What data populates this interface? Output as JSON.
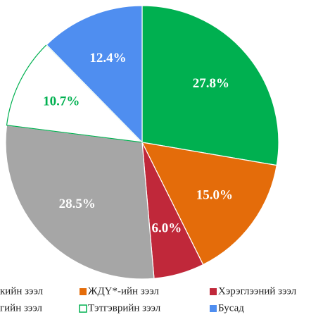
{
  "chart_data": {
    "type": "pie",
    "categories": [
      "кийн зээл",
      "ЖДҮ*-ийн зээл",
      "Хэрэглээний зээл",
      "гийн зээл",
      "Тэтгэврийн зээл",
      "Бусад"
    ],
    "values": [
      27.8,
      15.0,
      6.0,
      28.5,
      10.7,
      12.4
    ],
    "value_labels": [
      "27.8%",
      "15.0%",
      "6.0%",
      "28.5%",
      "10.7%",
      "12.4%"
    ],
    "colors": [
      "#00b050",
      "#e46c0a",
      "#c0283a",
      "#a6a6a6",
      "#ffffff",
      "#4f8ef0"
    ],
    "edgecolors": [
      "#ffffff",
      "#ffffff",
      "#ffffff",
      "#ffffff",
      "#00b050",
      "#ffffff"
    ],
    "label_colors": [
      "#ffffff",
      "#ffffff",
      "#ffffff",
      "#ffffff",
      "#00b050",
      "#ffffff"
    ],
    "start_angle": 90,
    "clockwise": true
  }
}
